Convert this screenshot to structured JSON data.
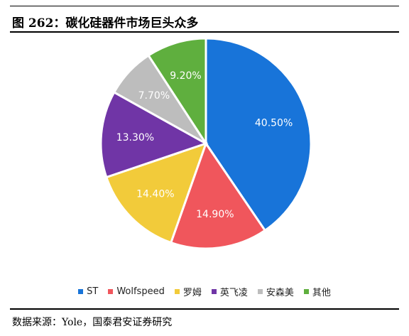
{
  "title": "图 262：碳化硅器件市场巨头众多",
  "source": "数据来源：Yole，国泰君安证券研究",
  "chart_data": {
    "type": "pie",
    "title": "",
    "legend_position": "bottom",
    "slices": [
      {
        "name": "ST",
        "value": 40.5,
        "label": "40.50%",
        "color": "#1874D9"
      },
      {
        "name": "Wolfspeed",
        "value": 14.9,
        "label": "14.90%",
        "color": "#F0565C"
      },
      {
        "name": "罗姆",
        "value": 14.4,
        "label": "14.40%",
        "color": "#F2CB3A"
      },
      {
        "name": "英飞凌",
        "value": 13.3,
        "label": "13.30%",
        "color": "#7035A6"
      },
      {
        "name": "安森美",
        "value": 7.7,
        "label": "7.70%",
        "color": "#BDBDBD"
      },
      {
        "name": "其他",
        "value": 9.2,
        "label": "9.20%",
        "color": "#5FAF3E"
      }
    ]
  }
}
